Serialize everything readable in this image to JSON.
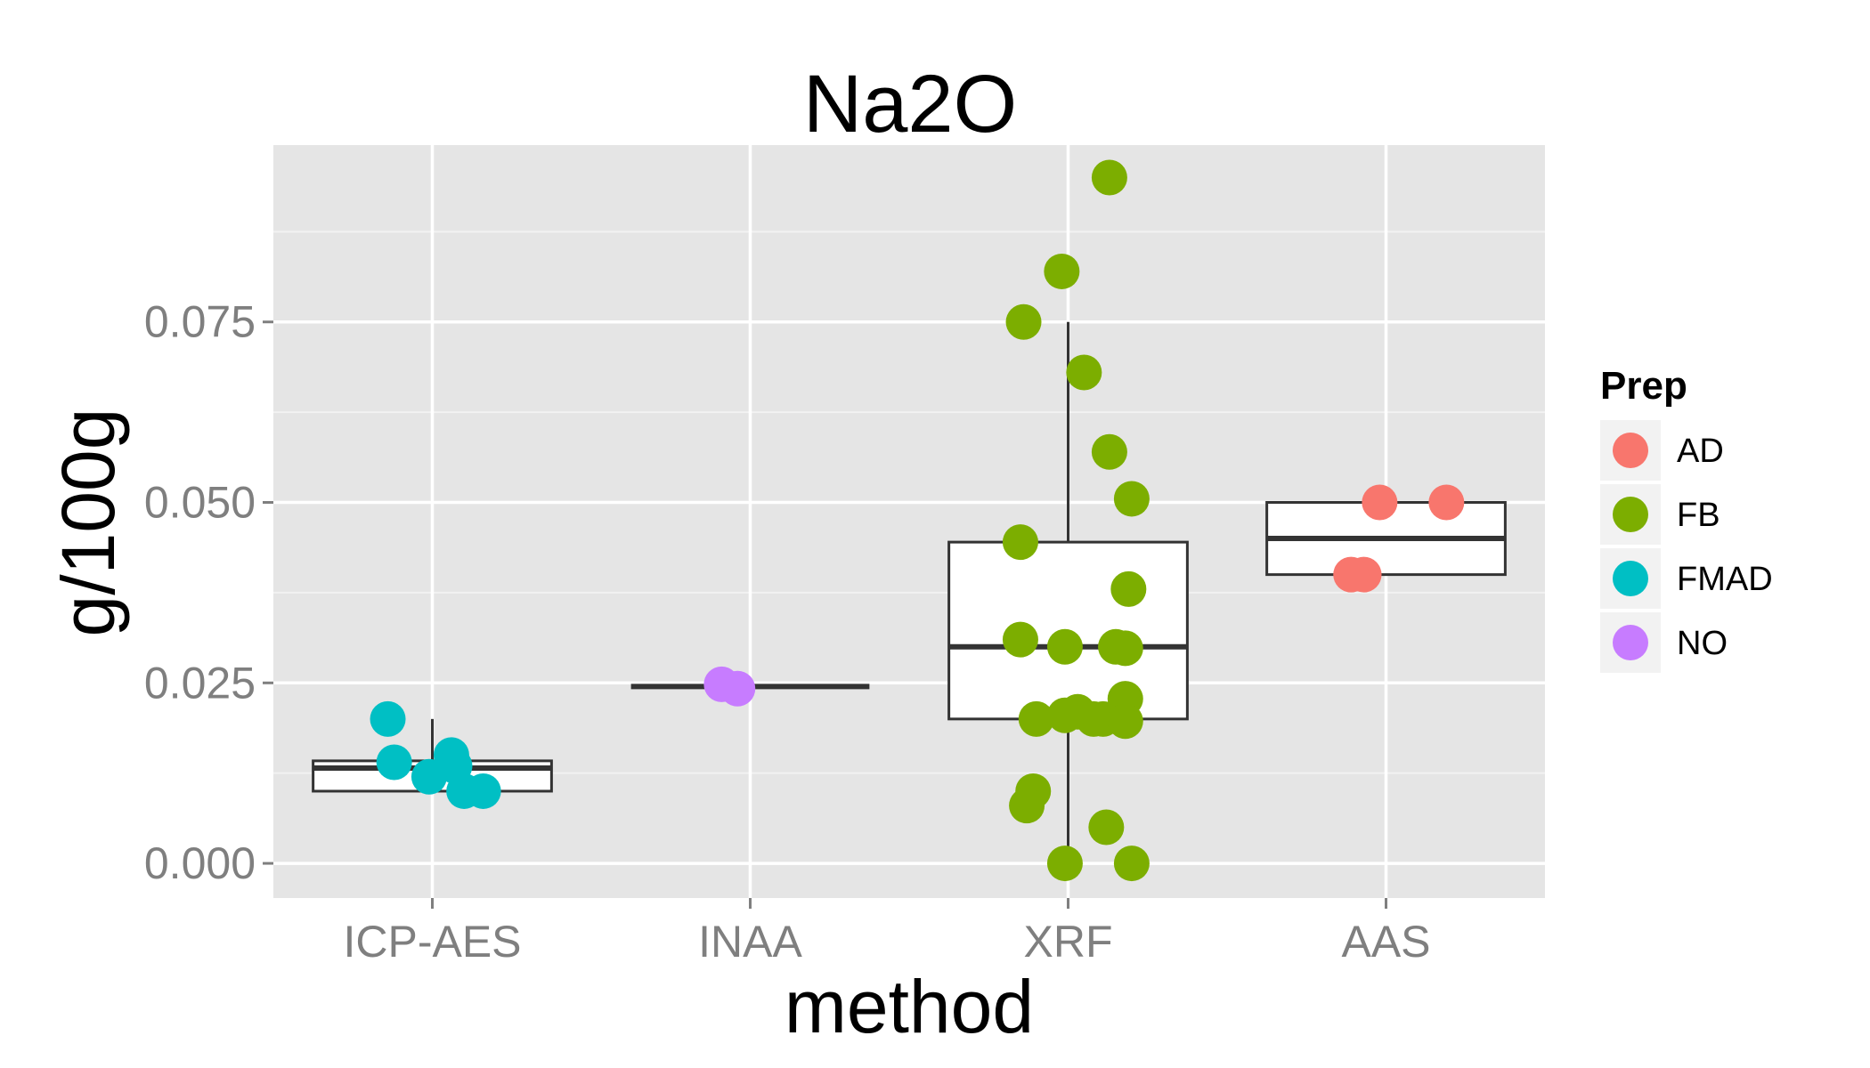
{
  "chart_data": {
    "type": "boxplot",
    "title": "Na2O",
    "xlabel": "method",
    "ylabel": "g/100g",
    "categories": [
      "ICP-AES",
      "INAA",
      "XRF",
      "AAS"
    ],
    "ylim": [
      -0.0048,
      0.0995
    ],
    "yticks": [
      0.0,
      0.025,
      0.05,
      0.075
    ],
    "ytick_labels": [
      "0.000",
      "0.025",
      "0.050",
      "0.075"
    ],
    "grid": true,
    "legend": {
      "title": "Prep",
      "position": "right",
      "entries": [
        {
          "label": "AD",
          "color": "#F8766D"
        },
        {
          "label": "FB",
          "color": "#7CAE00"
        },
        {
          "label": "FMAD",
          "color": "#00BFC4"
        },
        {
          "label": "NO",
          "color": "#C77CFF"
        }
      ]
    },
    "boxes": [
      {
        "category": "ICP-AES",
        "whisker_low": 0.01,
        "q1": 0.01,
        "median": 0.0132,
        "q3": 0.0142,
        "whisker_high": 0.02
      },
      {
        "category": "INAA",
        "whisker_low": 0.0245,
        "q1": 0.0245,
        "median": 0.0245,
        "q3": 0.0245,
        "whisker_high": 0.0245
      },
      {
        "category": "XRF",
        "whisker_low": 0.0,
        "q1": 0.02,
        "median": 0.03,
        "q3": 0.0445,
        "whisker_high": 0.075
      },
      {
        "category": "AAS",
        "whisker_low": 0.04,
        "q1": 0.04,
        "median": 0.045,
        "q3": 0.05,
        "whisker_high": 0.05
      }
    ],
    "points": [
      {
        "category": "ICP-AES",
        "prep": "FMAD",
        "jitter": -0.14,
        "y": 0.02
      },
      {
        "category": "ICP-AES",
        "prep": "FMAD",
        "jitter": -0.12,
        "y": 0.014
      },
      {
        "category": "ICP-AES",
        "prep": "FMAD",
        "jitter": 0.06,
        "y": 0.015
      },
      {
        "category": "ICP-AES",
        "prep": "FMAD",
        "jitter": 0.07,
        "y": 0.0135
      },
      {
        "category": "ICP-AES",
        "prep": "FMAD",
        "jitter": -0.01,
        "y": 0.012
      },
      {
        "category": "ICP-AES",
        "prep": "FMAD",
        "jitter": 0.1,
        "y": 0.01
      },
      {
        "category": "ICP-AES",
        "prep": "FMAD",
        "jitter": 0.16,
        "y": 0.01
      },
      {
        "category": "INAA",
        "prep": "NO",
        "jitter": -0.09,
        "y": 0.0248
      },
      {
        "category": "INAA",
        "prep": "NO",
        "jitter": -0.04,
        "y": 0.0242
      },
      {
        "category": "XRF",
        "prep": "FB",
        "jitter": 0.13,
        "y": 0.095
      },
      {
        "category": "XRF",
        "prep": "FB",
        "jitter": -0.02,
        "y": 0.082
      },
      {
        "category": "XRF",
        "prep": "FB",
        "jitter": -0.14,
        "y": 0.075
      },
      {
        "category": "XRF",
        "prep": "FB",
        "jitter": 0.05,
        "y": 0.068
      },
      {
        "category": "XRF",
        "prep": "FB",
        "jitter": 0.13,
        "y": 0.057
      },
      {
        "category": "XRF",
        "prep": "FB",
        "jitter": 0.2,
        "y": 0.0505
      },
      {
        "category": "XRF",
        "prep": "FB",
        "jitter": -0.15,
        "y": 0.0445
      },
      {
        "category": "XRF",
        "prep": "FB",
        "jitter": 0.19,
        "y": 0.038
      },
      {
        "category": "XRF",
        "prep": "FB",
        "jitter": -0.15,
        "y": 0.031
      },
      {
        "category": "XRF",
        "prep": "FB",
        "jitter": -0.01,
        "y": 0.03
      },
      {
        "category": "XRF",
        "prep": "FB",
        "jitter": 0.15,
        "y": 0.03
      },
      {
        "category": "XRF",
        "prep": "FB",
        "jitter": 0.18,
        "y": 0.0298
      },
      {
        "category": "XRF",
        "prep": "FB",
        "jitter": 0.18,
        "y": 0.0228
      },
      {
        "category": "XRF",
        "prep": "FB",
        "jitter": 0.03,
        "y": 0.021
      },
      {
        "category": "XRF",
        "prep": "FB",
        "jitter": -0.01,
        "y": 0.0205
      },
      {
        "category": "XRF",
        "prep": "FB",
        "jitter": 0.08,
        "y": 0.02
      },
      {
        "category": "XRF",
        "prep": "FB",
        "jitter": 0.11,
        "y": 0.02
      },
      {
        "category": "XRF",
        "prep": "FB",
        "jitter": -0.1,
        "y": 0.02
      },
      {
        "category": "XRF",
        "prep": "FB",
        "jitter": 0.18,
        "y": 0.0197
      },
      {
        "category": "XRF",
        "prep": "FB",
        "jitter": -0.11,
        "y": 0.01
      },
      {
        "category": "XRF",
        "prep": "FB",
        "jitter": -0.13,
        "y": 0.008
      },
      {
        "category": "XRF",
        "prep": "FB",
        "jitter": 0.12,
        "y": 0.005
      },
      {
        "category": "XRF",
        "prep": "FB",
        "jitter": -0.01,
        "y": 0.0
      },
      {
        "category": "XRF",
        "prep": "FB",
        "jitter": 0.2,
        "y": 0.0
      },
      {
        "category": "AAS",
        "prep": "AD",
        "jitter": -0.07,
        "y": 0.04
      },
      {
        "category": "AAS",
        "prep": "AD",
        "jitter": -0.11,
        "y": 0.04
      },
      {
        "category": "AAS",
        "prep": "AD",
        "jitter": -0.02,
        "y": 0.05
      },
      {
        "category": "AAS",
        "prep": "AD",
        "jitter": 0.19,
        "y": 0.05
      }
    ]
  }
}
